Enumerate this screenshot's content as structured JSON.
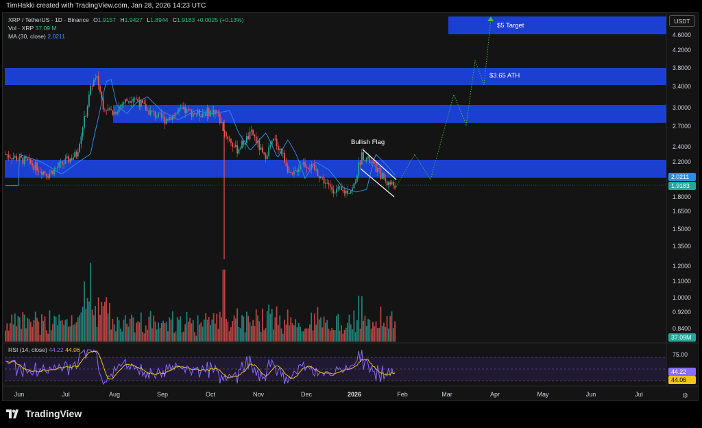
{
  "credit": "TimHakki created with TradingView.com, Jan 28, 2026 14:23 UTC",
  "legend": {
    "symbol": "XRP / TetherUS · 1D · Binance",
    "o_label": "O",
    "o": "1.9157",
    "h_label": "H",
    "h": "1.9427",
    "l_label": "L",
    "l": "1.8944",
    "c_label": "C",
    "c": "1.9183",
    "chg": "+0.0025 (+0.13%)",
    "vol_label": "Vol · XRP",
    "vol": "37.09 M",
    "ma_label": "MA (30, close)",
    "ma": "2.0211",
    "rsi_label": "RSI (14, close)",
    "rsi": "44.22",
    "rsi_ma": "44.06"
  },
  "currency_button": "USDT",
  "price_axis": [
    "4.6000",
    "4.2000",
    "3.8000",
    "3.4000",
    "3.0000",
    "2.7000",
    "2.4000",
    "2.2000",
    "1.8000",
    "1.6500",
    "1.5000",
    "1.3500",
    "1.2000",
    "1.1000",
    "1.0000",
    "0.9200",
    "0.8400"
  ],
  "badges": {
    "ma": "2.0211",
    "price": "1.9183",
    "volume": "37.09M",
    "rsi": "44.22",
    "rsi_ma": "44.06"
  },
  "rsi_axis": [
    "75.00"
  ],
  "time_axis": [
    "Jun",
    "Jul",
    "Aug",
    "Sep",
    "Oct",
    "Nov",
    "Dec",
    "2026",
    "Feb",
    "Mar",
    "Apr",
    "May",
    "Jun",
    "Jul"
  ],
  "annotations": {
    "target": "$5 Target",
    "ath": "$3.65 ATH",
    "flag": "Bullish Flag"
  },
  "footer": {
    "brand": "TradingView"
  },
  "colors": {
    "up": "#26a69a",
    "down": "#ef5350",
    "zone": "#1b3fd1",
    "ma": "#2f8be0",
    "rsi": "#8a6cff",
    "rsi_ma": "#f0c419",
    "projection": "#3fbf3f"
  },
  "chart_data": {
    "type": "candlestick",
    "symbol": "XRP / TetherUS",
    "interval": "1D",
    "last_close": 1.9183,
    "ma30": 2.0211,
    "zones": [
      {
        "label": "$5 Target",
        "low": 4.6,
        "high": 5.1
      },
      {
        "label": "$3.65 ATH",
        "low": 3.4,
        "high": 3.8
      },
      {
        "label": "",
        "low": 2.75,
        "high": 3.05
      },
      {
        "label": "",
        "low": 2.0,
        "high": 2.2
      }
    ],
    "close_path": [
      2.2,
      2.3,
      2.4,
      3.4,
      3.2,
      3.1,
      3.0,
      2.9,
      3.0,
      2.8,
      2.5,
      2.4,
      2.3,
      2.2,
      2.0,
      1.9,
      1.85,
      1.9,
      2.3,
      2.1,
      1.92
    ],
    "rsi_current": 44.22,
    "rsi_ma_current": 44.06
  }
}
